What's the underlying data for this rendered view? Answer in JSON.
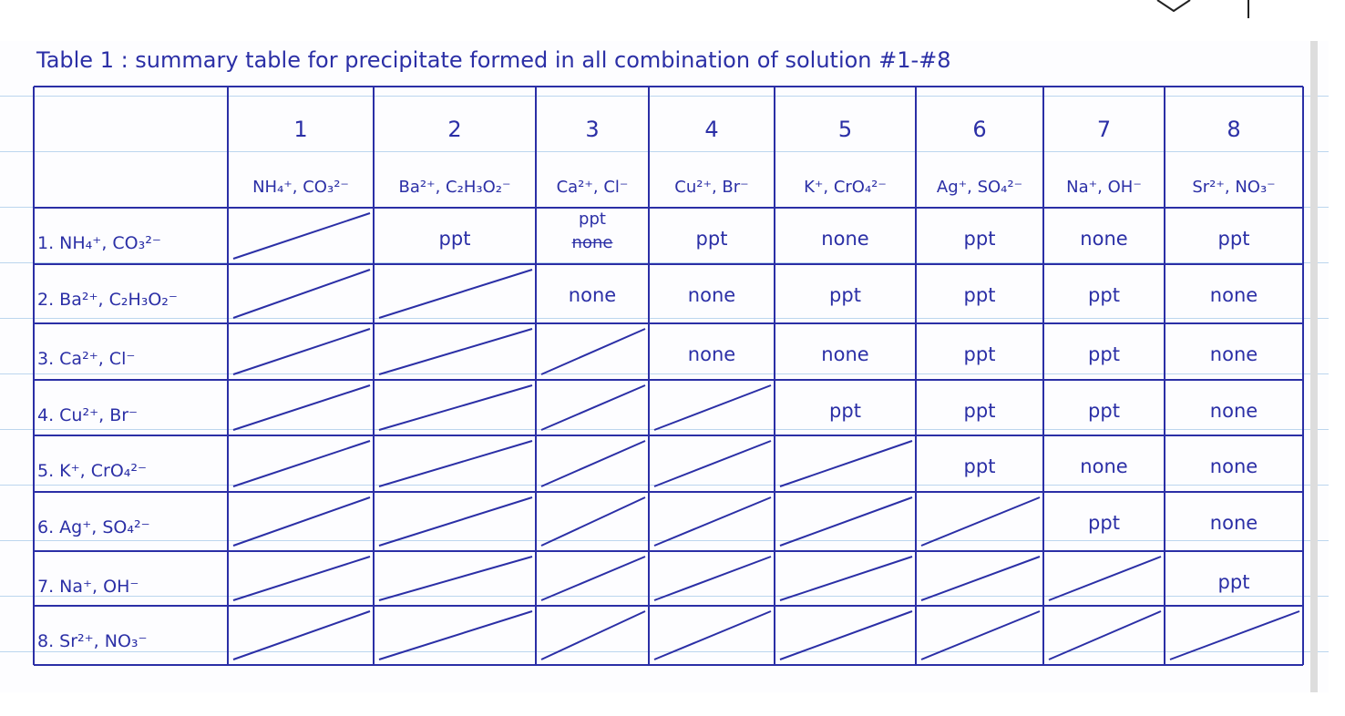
{
  "title": "Table 1 : summary table for precipitate formed in all combination of solution #1-#8",
  "table": {
    "columns": [
      {
        "number": "1",
        "ions": "NH₄⁺, CO₃²⁻"
      },
      {
        "number": "2",
        "ions": "Ba²⁺, C₂H₃O₂⁻"
      },
      {
        "number": "3",
        "ions": "Ca²⁺, Cl⁻"
      },
      {
        "number": "4",
        "ions": "Cu²⁺, Br⁻"
      },
      {
        "number": "5",
        "ions": "K⁺, CrO₄²⁻"
      },
      {
        "number": "6",
        "ions": "Ag⁺, SO₄²⁻"
      },
      {
        "number": "7",
        "ions": "Na⁺, OH⁻"
      },
      {
        "number": "8",
        "ions": "Sr²⁺, NO₃⁻"
      }
    ],
    "row_labels": [
      "1. NH₄⁺, CO₃²⁻",
      "2. Ba²⁺, C₂H₃O₂⁻",
      "3. Ca²⁺, Cl⁻",
      "4. Cu²⁺, Br⁻",
      "5. K⁺, CrO₄²⁻",
      "6. Ag⁺, SO₄²⁻",
      "7. Na⁺, OH⁻",
      "8. Sr²⁺, NO₃⁻"
    ],
    "rows": [
      [
        null,
        "ppt",
        "ppt",
        "ppt",
        "none",
        "ppt",
        "none",
        "ppt"
      ],
      [
        null,
        null,
        "none",
        "none",
        "ppt",
        "ppt",
        "ppt",
        "none"
      ],
      [
        null,
        null,
        null,
        "none",
        "none",
        "ppt",
        "ppt",
        "none"
      ],
      [
        null,
        null,
        null,
        null,
        "ppt",
        "ppt",
        "ppt",
        "none"
      ],
      [
        null,
        null,
        null,
        null,
        null,
        "ppt",
        "none",
        "none"
      ],
      [
        null,
        null,
        null,
        null,
        null,
        null,
        "ppt",
        "none"
      ],
      [
        null,
        null,
        null,
        null,
        null,
        null,
        null,
        "ppt"
      ],
      [
        null,
        null,
        null,
        null,
        null,
        null,
        null,
        null
      ]
    ],
    "struck_out": {
      "row": 0,
      "col": 2,
      "text": "none"
    }
  }
}
